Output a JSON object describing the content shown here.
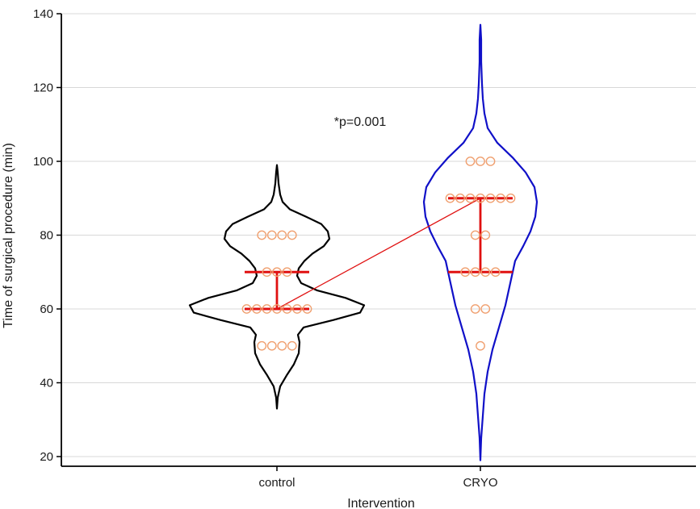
{
  "chart_data": {
    "type": "violin",
    "title": "",
    "xlabel": "Intervention",
    "ylabel": "Time of surgical procedure (min)",
    "ylim": [
      20,
      140
    ],
    "yticks": [
      20,
      40,
      60,
      80,
      100,
      120,
      140
    ],
    "categories": [
      "control",
      "CRYO"
    ],
    "grid": true,
    "annotation": "*p=0.001",
    "colors": {
      "control_outline": "#000000",
      "cryo_outline": "#1010c8",
      "points": "#f0a070",
      "summary": "#e01010",
      "grid": "#d8d8d8"
    },
    "groups": [
      {
        "name": "control",
        "median": 60,
        "q1": 60,
        "q3": 70,
        "points": [
          {
            "y": 80,
            "count": 4
          },
          {
            "y": 70,
            "count": 3
          },
          {
            "y": 60,
            "count": 7
          },
          {
            "y": 50,
            "count": 4
          }
        ],
        "density": [
          [
            33,
            0
          ],
          [
            36,
            1
          ],
          [
            39,
            4
          ],
          [
            42,
            12
          ],
          [
            45,
            21
          ],
          [
            48,
            27
          ],
          [
            51,
            28
          ],
          [
            53,
            26
          ],
          [
            55,
            33
          ],
          [
            57,
            70
          ],
          [
            59,
            103
          ],
          [
            61,
            108
          ],
          [
            63,
            85
          ],
          [
            65,
            50
          ],
          [
            67,
            30
          ],
          [
            69,
            25
          ],
          [
            71,
            27
          ],
          [
            73,
            34
          ],
          [
            75,
            44
          ],
          [
            77,
            58
          ],
          [
            79,
            65
          ],
          [
            81,
            63
          ],
          [
            83,
            55
          ],
          [
            85,
            36
          ],
          [
            87,
            16
          ],
          [
            89,
            7
          ],
          [
            91,
            4
          ],
          [
            94,
            2
          ],
          [
            97,
            1
          ],
          [
            99,
            0
          ]
        ]
      },
      {
        "name": "CRYO",
        "median": 90,
        "q1": 70,
        "q3": 90,
        "points": [
          {
            "y": 100,
            "count": 3
          },
          {
            "y": 90,
            "count": 7
          },
          {
            "y": 80,
            "count": 2
          },
          {
            "y": 70,
            "count": 4
          },
          {
            "y": 60,
            "count": 2
          },
          {
            "y": 50,
            "count": 1
          }
        ],
        "density": [
          [
            19,
            0
          ],
          [
            25,
            1
          ],
          [
            31,
            3
          ],
          [
            37,
            5
          ],
          [
            43,
            9
          ],
          [
            49,
            15
          ],
          [
            55,
            23
          ],
          [
            61,
            31
          ],
          [
            67,
            37
          ],
          [
            73,
            43
          ],
          [
            77,
            53
          ],
          [
            81,
            62
          ],
          [
            85,
            68
          ],
          [
            89,
            70
          ],
          [
            93,
            67
          ],
          [
            97,
            56
          ],
          [
            101,
            40
          ],
          [
            105,
            21
          ],
          [
            109,
            9
          ],
          [
            113,
            5
          ],
          [
            117,
            3
          ],
          [
            121,
            2
          ],
          [
            127,
            1
          ],
          [
            133,
            1
          ],
          [
            137,
            0
          ]
        ]
      }
    ],
    "connecting_line": {
      "from": "control",
      "to": "CRYO",
      "statistic": "median"
    }
  }
}
